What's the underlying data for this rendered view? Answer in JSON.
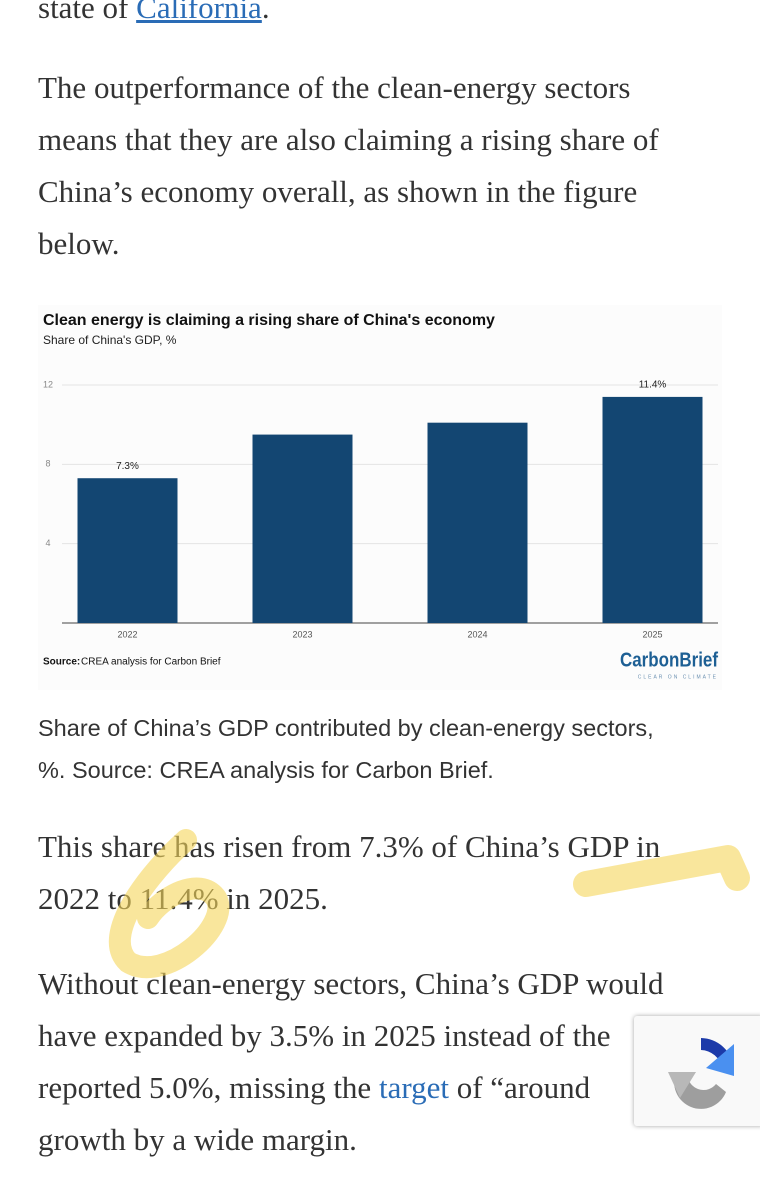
{
  "article": {
    "intro": {
      "before": "state of ",
      "link": "California",
      "after": "."
    },
    "paragraph_1": [
      "The outperformance of the clean-energy sectors",
      "means that they are also claiming a rising share of",
      "China’s economy overall, as shown in the figure",
      "below."
    ],
    "caption": [
      "Share of China’s GDP contributed by clean-energy sectors,",
      "%. Source: CREA analysis for Carbon Brief."
    ],
    "paragraph_2": [
      "This share has risen from 7.3% of China’s GDP in",
      "2022 to 11.4% in 2025."
    ],
    "paragraph_3": {
      "line_1": "Without clean-energy sectors, China’s GDP would",
      "line_2": "have expanded by 3.5% in 2025 instead of the",
      "line_3_before": "reported 5.0%, missing the ",
      "line_3_link": "target",
      "line_3_after": " of “around",
      "line_4": "growth by a wide margin."
    }
  },
  "chart_data": {
    "type": "bar",
    "title": "Clean energy is claiming a rising share of China's economy",
    "subtitle": "Share of China's GDP, %",
    "categories": [
      "2022",
      "2023",
      "2024",
      "2025"
    ],
    "values": [
      7.3,
      9.5,
      10.1,
      11.4
    ],
    "value_labels": [
      "7.3%",
      null,
      null,
      "11.4%"
    ],
    "color": "#134672",
    "ylim": [
      0,
      12
    ],
    "yticks": [
      4,
      8,
      12
    ],
    "grid": true,
    "source_label": "Source:",
    "source": "CREA analysis for Carbon Brief",
    "logo": "CarbonBrief",
    "logo_tagline": "CLEAR ON CLIMATE"
  }
}
